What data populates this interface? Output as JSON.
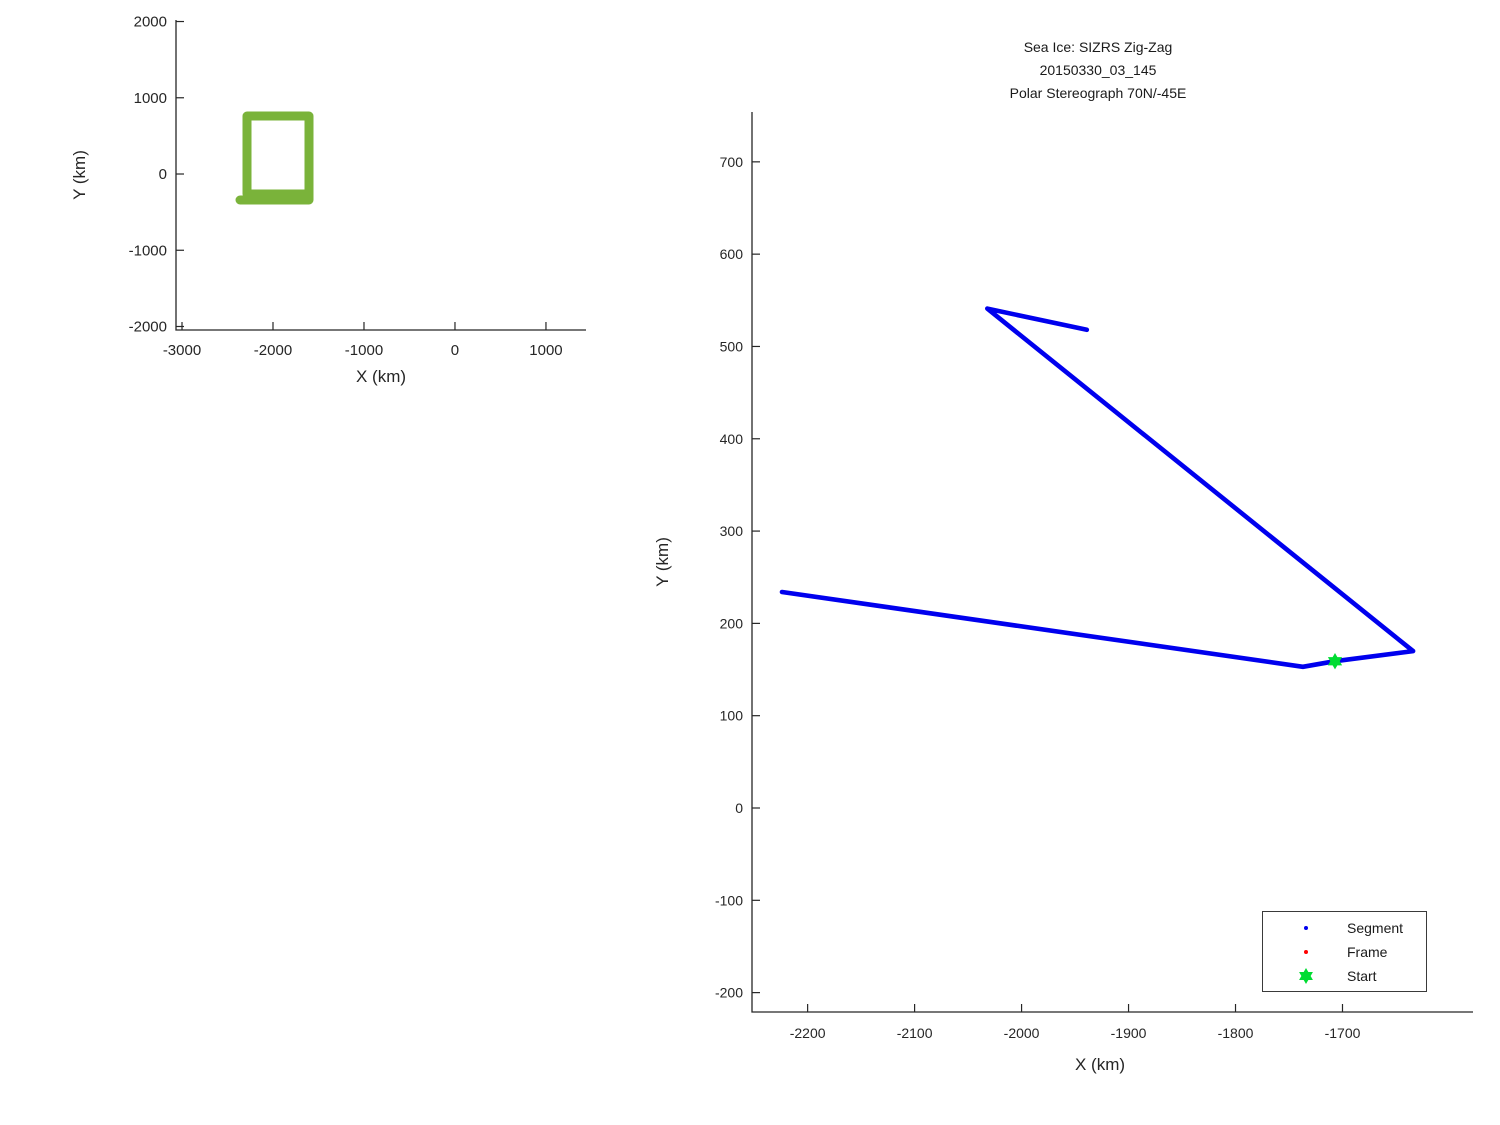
{
  "figure": {
    "title_lines": [
      "Sea Ice: SIZRS Zig-Zag",
      "20150330_03_145",
      "Polar Stereograph 70N/-45E"
    ]
  },
  "colors": {
    "segment_blue": "#0000EE",
    "frame_red": "#FF0000",
    "start_green": "#00DC32",
    "overview_green": "#7AB33A",
    "axis": "#262626",
    "text": "#1a1a1a"
  },
  "legend": {
    "entries": [
      {
        "label": "Segment",
        "marker": "dot",
        "color": "#0000EE"
      },
      {
        "label": "Frame",
        "marker": "dot",
        "color": "#FF0000"
      },
      {
        "label": "Start",
        "marker": "hexagram",
        "color": "#00DC32"
      }
    ]
  },
  "chart_data": [
    {
      "id": "overview",
      "type": "line",
      "title": "",
      "xlabel": "X (km)",
      "ylabel": "Y (km)",
      "xlim": [
        -3066,
        1440
      ],
      "ylim": [
        -2046,
        2020
      ],
      "xticks": [
        -3000,
        -2000,
        -1000,
        0,
        1000
      ],
      "yticks": [
        -2000,
        -1000,
        0,
        1000,
        2000
      ],
      "grid": false,
      "legend_position": "none",
      "series": [
        {
          "name": "survey-box-outline",
          "color": "#7AB33A",
          "points": [
            [
              -2363,
              -341
            ],
            [
              -1604,
              -341
            ],
            [
              -1604,
              761
            ],
            [
              -2286,
              761
            ],
            [
              -2286,
              -262
            ],
            [
              -1604,
              -262
            ]
          ]
        }
      ],
      "markers": []
    },
    {
      "id": "trajectory",
      "type": "line",
      "title": "Sea Ice: SIZRS Zig-Zag 20150330_03_145 Polar Stereograph 70N/-45E",
      "xlabel": "X (km)",
      "ylabel": "Y (km)",
      "xlim": [
        -2252,
        -1578
      ],
      "ylim": [
        -221,
        754
      ],
      "xticks": [
        -2200,
        -2100,
        -2000,
        -1900,
        -1800,
        -1700
      ],
      "yticks": [
        -200,
        -100,
        0,
        100,
        200,
        300,
        400,
        500,
        600,
        700
      ],
      "grid": false,
      "legend_position": "lower-right",
      "series": [
        {
          "name": "Segment",
          "color": "#0000EE",
          "points": [
            [
              -1939,
              518
            ],
            [
              -2032,
              541
            ],
            [
              -1634,
              170
            ],
            [
              -1707,
              159
            ],
            [
              -1737,
              153
            ],
            [
              -2224,
              234
            ]
          ]
        }
      ],
      "markers": [
        {
          "name": "Start",
          "shape": "hexagram",
          "color": "#00DC32",
          "x": -1707,
          "y": 159
        }
      ]
    }
  ]
}
